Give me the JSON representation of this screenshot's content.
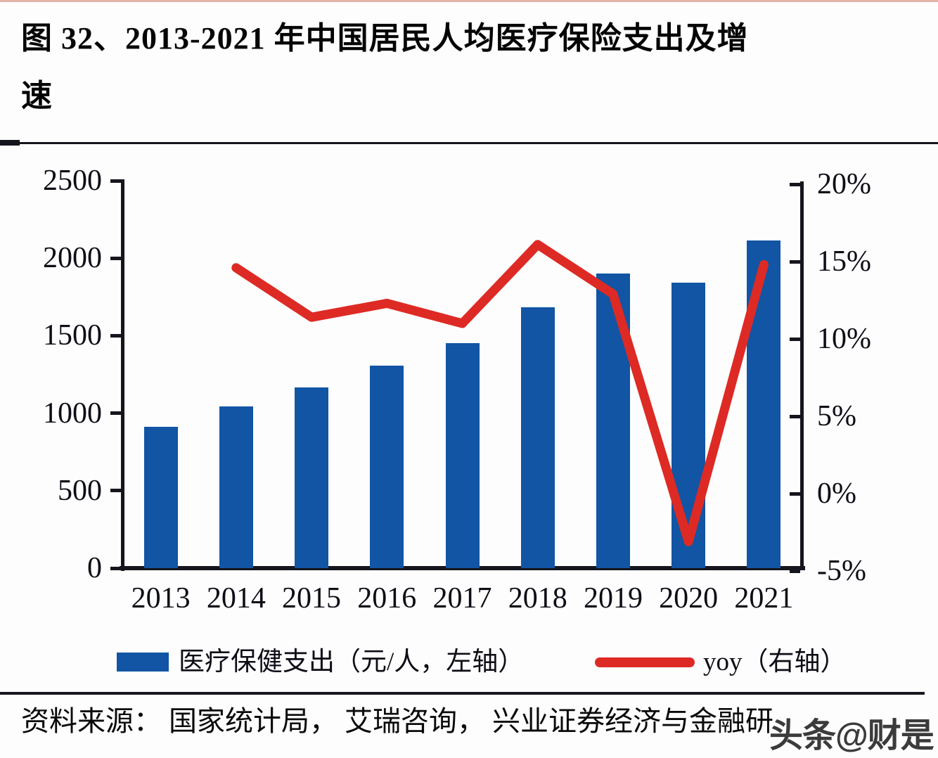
{
  "page": {
    "title_lines": [
      "图 32、2013-2021 年中国居民人均医疗保险支出及增",
      "速"
    ],
    "source_label": "资料来源： 国家统计局， 艾瑞咨询， 兴业证券经济与金融研",
    "watermark": "头条@财是"
  },
  "colors": {
    "bar": "#1155a4",
    "line": "#de2a24",
    "axis": "#15151d",
    "top_border": "#cb6a52"
  },
  "chart_data": {
    "type": "bar+line combo",
    "categories": [
      "2013",
      "2014",
      "2015",
      "2016",
      "2017",
      "2018",
      "2019",
      "2020",
      "2021"
    ],
    "series": [
      {
        "name": "医疗保健支出（元/人，左轴）",
        "type": "bar",
        "axis": "left",
        "values": [
          912,
          1045,
          1164,
          1307,
          1451,
          1685,
          1902,
          1843,
          2115
        ]
      },
      {
        "name": "yoy（右轴）",
        "type": "line",
        "axis": "right",
        "values": [
          null,
          14.6,
          11.4,
          12.3,
          11.0,
          16.1,
          12.9,
          -3.1,
          14.8
        ]
      }
    ],
    "left_axis": {
      "range": [
        0,
        2500
      ],
      "ticks": [
        0,
        500,
        1000,
        1500,
        2000,
        2500
      ],
      "labels": [
        "0",
        "500",
        "1000",
        "1500",
        "2000",
        "2500"
      ]
    },
    "right_axis": {
      "range": [
        -5,
        20
      ],
      "ticks": [
        -5,
        0,
        5,
        10,
        15,
        20
      ],
      "labels": [
        "-5%",
        "0%",
        "5%",
        "10%",
        "15%",
        "20%"
      ]
    },
    "legend": [
      {
        "label": "医疗保健支出（元/人，左轴）",
        "swatch": "bar"
      },
      {
        "label": "yoy（右轴）",
        "swatch": "line"
      }
    ],
    "grid": false,
    "legend_position": "bottom"
  }
}
